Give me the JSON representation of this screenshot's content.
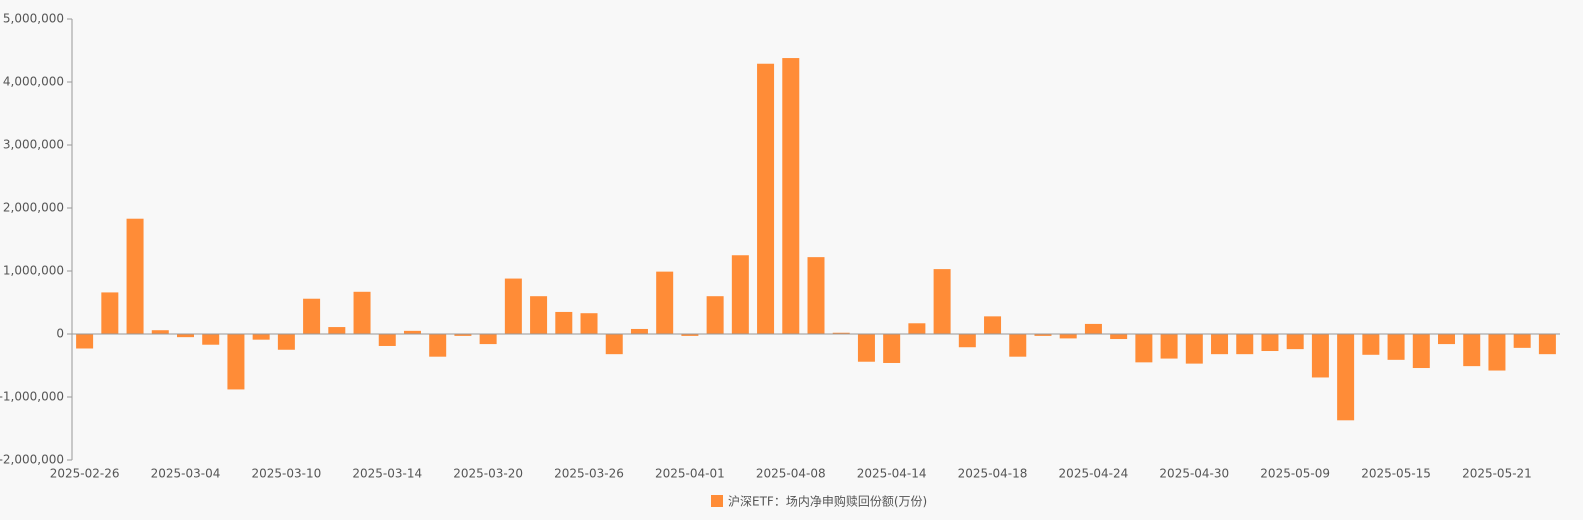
{
  "chart_data": {
    "type": "bar",
    "categories": [
      "2025-02-26",
      null,
      null,
      null,
      "2025-03-04",
      null,
      null,
      null,
      "2025-03-10",
      null,
      null,
      null,
      "2025-03-14",
      null,
      null,
      null,
      "2025-03-20",
      null,
      null,
      null,
      "2025-03-26",
      null,
      null,
      null,
      "2025-04-01",
      null,
      null,
      null,
      "2025-04-08",
      null,
      null,
      null,
      "2025-04-14",
      null,
      null,
      null,
      "2025-04-18",
      null,
      null,
      null,
      "2025-04-24",
      null,
      null,
      null,
      "2025-04-30",
      null,
      null,
      null,
      "2025-05-09",
      null,
      null,
      null,
      "2025-05-15",
      null,
      null,
      null,
      "2025-05-21",
      null,
      null
    ],
    "series": [
      {
        "name": "沪深ETF：场内净申购赎回份额(万份)",
        "color": "#ff8c37",
        "values": [
          -230000,
          660000,
          1830000,
          60000,
          -50000,
          -170000,
          -880000,
          -90000,
          -250000,
          560000,
          110000,
          670000,
          -190000,
          50000,
          -360000,
          -30000,
          -160000,
          880000,
          600000,
          350000,
          330000,
          -320000,
          80000,
          990000,
          -30000,
          600000,
          1250000,
          4290000,
          4380000,
          1220000,
          20000,
          -440000,
          -460000,
          170000,
          1030000,
          -210000,
          280000,
          -360000,
          -30000,
          -70000,
          160000,
          -80000,
          -450000,
          -390000,
          -470000,
          -320000,
          -320000,
          -270000,
          -240000,
          -690000,
          -1370000,
          -330000,
          -410000,
          -540000,
          -160000,
          -510000,
          -580000,
          -220000,
          -320000
        ]
      }
    ],
    "ylim": [
      -2000000,
      5000000
    ],
    "yticks": [
      {
        "value": -2000000,
        "label": "-2,000,000"
      },
      {
        "value": -1000000,
        "label": "-1,000,000"
      },
      0,
      {
        "value": 1000000,
        "label": "1,000,000"
      },
      {
        "value": 2000000,
        "label": "2,000,000"
      },
      {
        "value": 3000000,
        "label": "3,000,000"
      },
      {
        "value": 4000000,
        "label": "4,000,000"
      },
      {
        "value": 5000000,
        "label": "5,000,000"
      }
    ],
    "legend": "bottom"
  }
}
